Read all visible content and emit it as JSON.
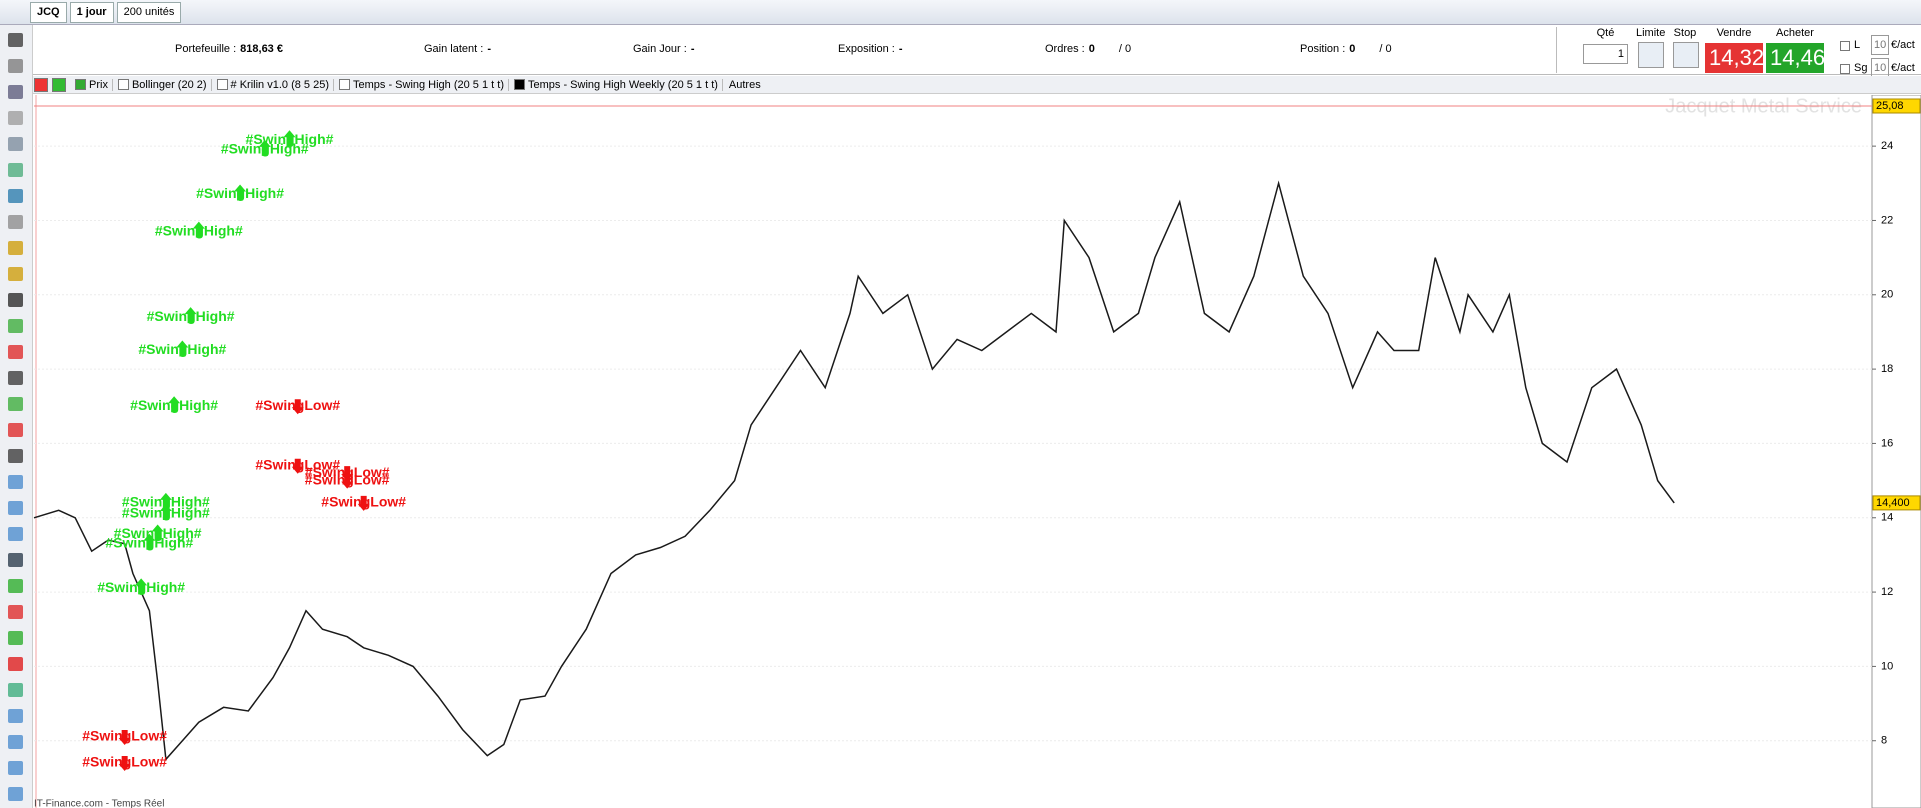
{
  "toolbar": {
    "symbol": "JCQ",
    "period": "1 jour",
    "units": "200 unités"
  },
  "info": [
    {
      "label": "Portefeuille :",
      "value": "818,63 €"
    },
    {
      "label": "Gain latent :",
      "value": "-"
    },
    {
      "label": "Gain Jour :",
      "value": "-"
    },
    {
      "label": "Exposition :",
      "value": "-"
    },
    {
      "label": "Ordres :",
      "value": "0",
      "extra": "/ 0"
    },
    {
      "label": "Position :",
      "value": "0",
      "extra": "/ 0"
    }
  ],
  "order_panel": {
    "qty_label": "Qté",
    "qty": "1",
    "limit": "Limite",
    "stop": "Stop",
    "sell_label": "Vendre",
    "sell": "14,320",
    "buy_label": "Acheter",
    "buy": "14,460",
    "l": "L",
    "l_value": "10",
    "sg": "Sg",
    "sg_value": "10",
    "unit": "€/act"
  },
  "indicators": [
    "Prix",
    "Bollinger (20 2)",
    "# Krilin v1.0 (8 5 25)",
    "Temps - Swing High (20 5 1 t t)",
    "Temps - Swing High Weekly (20 5 1 t t)"
  ],
  "others": "Autres",
  "chart_data": {
    "type": "line",
    "title": "Jacquet Metal Service",
    "x": [
      0,
      3,
      5,
      7,
      9,
      11,
      12,
      14,
      15,
      16,
      18,
      20,
      23,
      26,
      29,
      31,
      33,
      35,
      38,
      40,
      43,
      46,
      49,
      52,
      55,
      57,
      59,
      62,
      64,
      67,
      70,
      73,
      76,
      79,
      82,
      85,
      87,
      90,
      93,
      96,
      99,
      100,
      103,
      106,
      109,
      112,
      115,
      118,
      121,
      124,
      125,
      128,
      131,
      134,
      136,
      139,
      142,
      145,
      148,
      151,
      154,
      157,
      160,
      163,
      165,
      168,
      170,
      173,
      174,
      177,
      179,
      181,
      183,
      186,
      189,
      192,
      195,
      197,
      199
    ],
    "series": [
      {
        "color": "#1a1a1a",
        "values": [
          14.0,
          14.2,
          14.0,
          13.1,
          13.4,
          13.3,
          12.5,
          11.5,
          9.6,
          7.5,
          8.0,
          8.5,
          8.9,
          8.8,
          9.7,
          10.5,
          11.5,
          11.0,
          10.8,
          10.5,
          10.3,
          10.0,
          9.2,
          8.3,
          7.6,
          7.9,
          9.1,
          9.2,
          10.0,
          11.0,
          12.5,
          13.0,
          13.2,
          13.5,
          14.2,
          15.0,
          16.5,
          17.5,
          18.5,
          17.5,
          19.5,
          20.5,
          19.5,
          20.0,
          18.0,
          18.8,
          18.5,
          19.0,
          19.5,
          19.0,
          22.0,
          21.0,
          19.0,
          19.5,
          21.0,
          22.5,
          19.5,
          19.0,
          20.5,
          23.0,
          20.5,
          19.5,
          17.5,
          19.0,
          18.5,
          18.5,
          21.0,
          19.0,
          20.0,
          19.0,
          20.0,
          17.5,
          16.0,
          15.5,
          17.5,
          18.0,
          16.5,
          15.0,
          14.4
        ]
      }
    ],
    "xlim": [
      0,
      223
    ],
    "ylim": [
      6.19,
      25.08
    ],
    "yticks": [
      8,
      10,
      12,
      14,
      16,
      18,
      20,
      22,
      24
    ],
    "top_marker": {
      "value": 25.08,
      "label": "25,08"
    },
    "last_price": {
      "value": 14.4,
      "label": "14,400"
    },
    "annotations": [
      {
        "text": "#SwingHigh#",
        "x": 31,
        "y": 24.16,
        "color": "#22dd22"
      },
      {
        "text": "#SwingHigh#",
        "x": 28,
        "y": 23.9,
        "color": "#22dd22"
      },
      {
        "text": "#SwingHigh#",
        "x": 25,
        "y": 22.7,
        "color": "#22dd22"
      },
      {
        "text": "#SwingHigh#",
        "x": 20,
        "y": 21.7,
        "color": "#22dd22"
      },
      {
        "text": "#SwingHigh#",
        "x": 19,
        "y": 19.4,
        "color": "#22dd22"
      },
      {
        "text": "#SwingHigh#",
        "x": 18,
        "y": 18.5,
        "color": "#22dd22"
      },
      {
        "text": "#SwingHigh#",
        "x": 17,
        "y": 17.0,
        "color": "#22dd22"
      },
      {
        "text": "#SwingHigh#",
        "x": 16,
        "y": 14.4,
        "color": "#22dd22"
      },
      {
        "text": "#SwingHigh#",
        "x": 16,
        "y": 14.1,
        "color": "#22dd22"
      },
      {
        "text": "#SwingHigh#",
        "x": 15,
        "y": 13.55,
        "color": "#22dd22"
      },
      {
        "text": "#SwingHigh#",
        "x": 14,
        "y": 13.3,
        "color": "#22dd22"
      },
      {
        "text": "#SwingHigh#",
        "x": 13,
        "y": 12.1,
        "color": "#22dd22"
      },
      {
        "text": "#SwingLow#",
        "x": 32,
        "y": 17.0,
        "color": "#ee1111"
      },
      {
        "text": "#SwingLow#",
        "x": 32,
        "y": 15.4,
        "color": "#ee1111"
      },
      {
        "text": "#SwingLow#",
        "x": 38,
        "y": 15.2,
        "color": "#ee1111"
      },
      {
        "text": "#SwingLow#",
        "x": 38,
        "y": 15.0,
        "color": "#ee1111"
      },
      {
        "text": "#SwingLow#",
        "x": 40,
        "y": 14.4,
        "color": "#ee1111"
      },
      {
        "text": "#SwingLow#",
        "x": 11,
        "y": 8.1,
        "color": "#ee1111"
      },
      {
        "text": "#SwingLow#",
        "x": 11,
        "y": 7.4,
        "color": "#ee1111"
      }
    ],
    "source": "IT-Finance.com - Temps Réel"
  }
}
